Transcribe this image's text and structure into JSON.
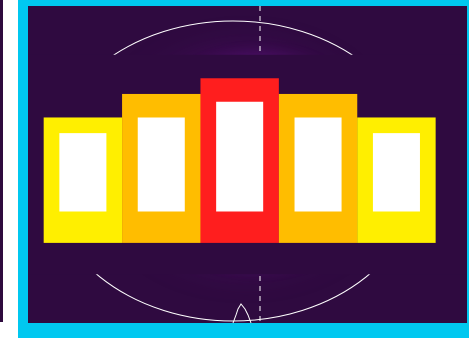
{
  "image": {
    "name": "beam-profile-view",
    "colors": {
      "frame": "#00c8f0",
      "background": "#2f0a40",
      "outline": "#ffffff",
      "glow": "#450b5c",
      "magenta": "#d018b8",
      "blue": "#3f1fd8",
      "cyan": "#11c6ff",
      "green": "#0bb867",
      "lime": "#72d400",
      "yellow": "#d9ee00",
      "orange": "#ffbd00",
      "red": "#ff1e1e"
    },
    "icons": {
      "top_left_badge": "heatmap-legend-icon"
    }
  }
}
